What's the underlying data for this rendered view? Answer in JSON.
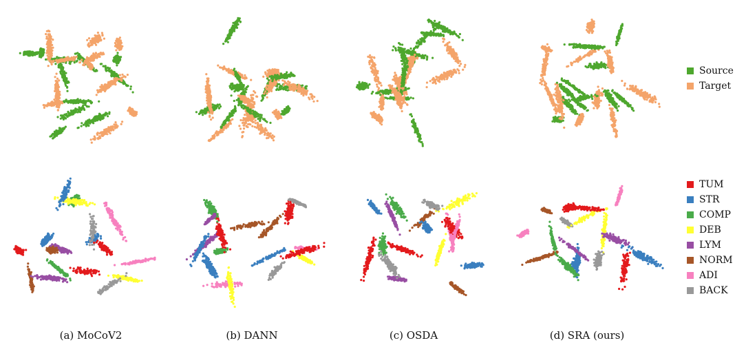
{
  "chart_data": {
    "type": "scatter",
    "panels": [
      {
        "caption": "(a) MoCoV2"
      },
      {
        "caption": "(b) DANN"
      },
      {
        "caption": "(c) OSDA"
      },
      {
        "caption": "(d) SRA (ours)"
      }
    ],
    "rows": [
      {
        "legend": [
          {
            "name": "Source",
            "color": "#4ea72e"
          },
          {
            "name": "Target",
            "color": "#f4a46a"
          }
        ]
      },
      {
        "legend": [
          {
            "name": "TUM",
            "color": "#e31a1c"
          },
          {
            "name": "STR",
            "color": "#3a7fbf"
          },
          {
            "name": "COMP",
            "color": "#4aab4a"
          },
          {
            "name": "DEB",
            "color": "#ffff33"
          },
          {
            "name": "LYM",
            "color": "#984ea3"
          },
          {
            "name": "NORM",
            "color": "#a65628"
          },
          {
            "name": "ADI",
            "color": "#f781bf"
          },
          {
            "name": "BACK",
            "color": "#999999"
          }
        ]
      }
    ],
    "axes": "none",
    "grid": false,
    "legend_placement": "right"
  }
}
